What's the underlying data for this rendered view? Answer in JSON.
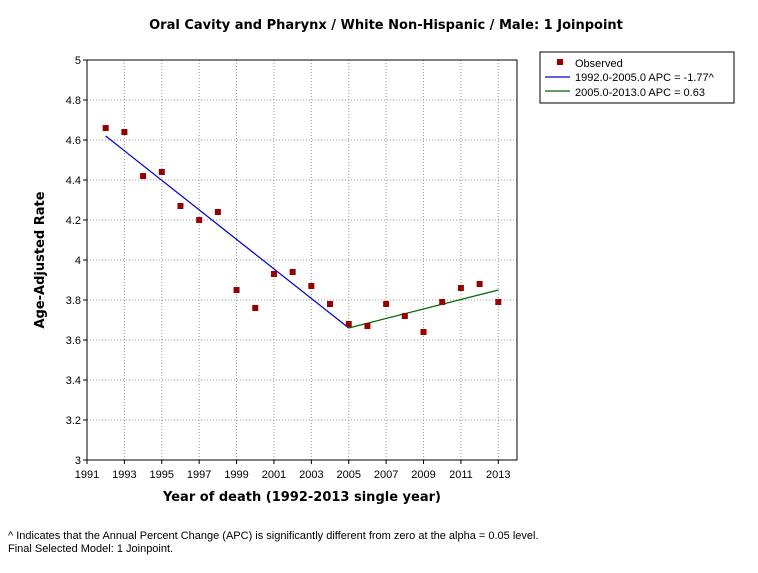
{
  "chart_data": {
    "type": "scatter",
    "title": "Oral Cavity and Pharynx / White Non-Hispanic / Male: 1 Joinpoint",
    "xlabel": "Year of death (1992-2013 single year)",
    "ylabel": "Age-Adjusted Rate",
    "xlim": [
      1991,
      2014
    ],
    "ylim": [
      3,
      5
    ],
    "x_ticks": [
      "1991",
      "1993",
      "1995",
      "1997",
      "1999",
      "2001",
      "2003",
      "2005",
      "2007",
      "2009",
      "2011",
      "2013"
    ],
    "y_ticks": [
      "3",
      "3.2",
      "3.4",
      "3.6",
      "3.8",
      "4",
      "4.2",
      "4.4",
      "4.6",
      "4.8",
      "5"
    ],
    "grid": true,
    "legend_position": "top-right outside",
    "observed": {
      "name": "Observed",
      "color": "#990000",
      "x": [
        1992,
        1993,
        1994,
        1995,
        1996,
        1997,
        1998,
        1999,
        2000,
        2001,
        2002,
        2003,
        2004,
        2005,
        2006,
        2007,
        2008,
        2009,
        2010,
        2011,
        2012,
        2013
      ],
      "y": [
        4.66,
        4.64,
        4.42,
        4.44,
        4.27,
        4.2,
        4.24,
        3.85,
        3.76,
        3.93,
        3.94,
        3.87,
        3.78,
        3.68,
        3.67,
        3.78,
        3.72,
        3.64,
        3.79,
        3.86,
        3.88,
        3.79
      ]
    },
    "segments": [
      {
        "name": "1992.0-2005.0 APC  = -1.77^",
        "color": "#0000cc",
        "x": [
          1992,
          2005
        ],
        "y": [
          4.62,
          3.66
        ]
      },
      {
        "name": "2005.0-2013.0 APC  =  0.63",
        "color": "#006600",
        "x": [
          2005,
          2013
        ],
        "y": [
          3.66,
          3.85
        ]
      }
    ]
  },
  "footnote": {
    "line1": "^ Indicates that the Annual Percent Change (APC) is significantly different from zero at the alpha = 0.05 level.",
    "line2": "Final Selected Model: 1 Joinpoint."
  }
}
